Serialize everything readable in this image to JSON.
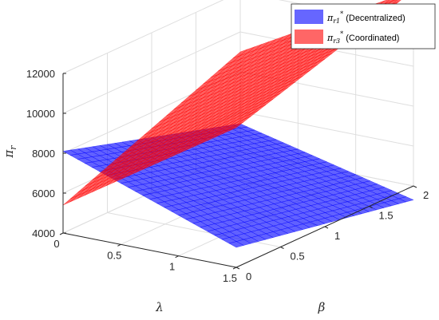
{
  "chart_data": {
    "type": "surface3d",
    "title": "",
    "xlabel": "λ",
    "ylabel": "β",
    "zlabel": "π",
    "zlabel_sub": "r",
    "xlim": [
      0,
      1.5
    ],
    "ylim": [
      0,
      2
    ],
    "zlim": [
      4000,
      12000
    ],
    "xticks": [
      "0",
      "0.5",
      "1",
      "1.5"
    ],
    "yticks": [
      "0",
      "0.5",
      "1",
      "1.5",
      "2"
    ],
    "zticks": [
      "4000",
      "6000",
      "8000",
      "10000",
      "12000"
    ],
    "grid": true,
    "legend_position": "top-right",
    "series": [
      {
        "name": "π_r1* (Decentralized)",
        "legend_symbol": "π",
        "legend_sub": "r1",
        "legend_sup": "*",
        "legend_text": " (Decentralized)",
        "color": "#0000ff",
        "corners": {
          "l0_b0": 8100,
          "l0_b2": 5400,
          "l1.5_b0": 5000,
          "l1.5_b2": 3300
        }
      },
      {
        "name": "π_r3* (Coordinated)",
        "legend_symbol": "π",
        "legend_sub": "r3",
        "legend_sup": "*",
        "legend_text": " (Coordinated)",
        "color": "#ff0000",
        "corners": {
          "l0_b0": 5400,
          "l0_b2": 9000,
          "l1.5_b0": 11000,
          "l1.5_b2": 13800
        }
      }
    ]
  }
}
